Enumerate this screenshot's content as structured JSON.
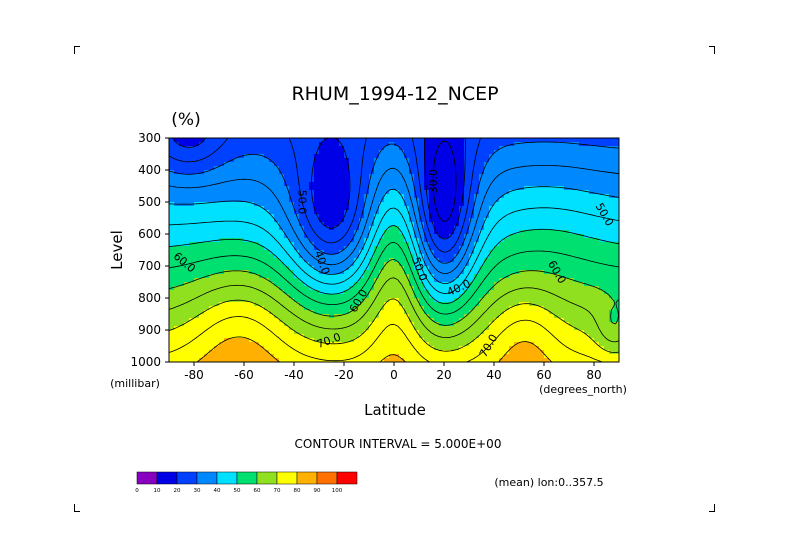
{
  "chart_data": {
    "type": "heatmap",
    "title": "RHUM_1994-12_NCEP",
    "units": "(%)",
    "xlabel": "Latitude",
    "ylabel": "Level",
    "x_units": "(degrees_north)",
    "y_units": "(millibar)",
    "xlim": [
      -90,
      90
    ],
    "ylim": [
      1000,
      300
    ],
    "x_ticks": [
      -80,
      -60,
      -40,
      -20,
      0,
      20,
      40,
      60,
      80
    ],
    "x_tick_labels": [
      "-80",
      "-60",
      "-40",
      "-20",
      "0",
      "20",
      "40",
      "60",
      "80"
    ],
    "y_ticks": [
      300,
      400,
      500,
      600,
      700,
      800,
      900,
      1000
    ],
    "y_tick_labels": [
      "300",
      "400",
      "500",
      "600",
      "700",
      "800",
      "900",
      "1000"
    ],
    "contour_interval_text": "CONTOUR INTERVAL = 5.000E+00",
    "subtitle": "(mean) lon:0..357.5",
    "levels": [
      0,
      10,
      20,
      30,
      40,
      50,
      60,
      70,
      80,
      90,
      100
    ],
    "level_labels": [
      "0",
      "10",
      "20",
      "30",
      "40",
      "50",
      "60",
      "70",
      "80",
      "90",
      "100"
    ],
    "colors": [
      "#8800c0",
      "#0000e6",
      "#0040ff",
      "#0088ff",
      "#00e0ff",
      "#00e070",
      "#90e020",
      "#ffff00",
      "#ffb000",
      "#ff7000",
      "#ff0000"
    ],
    "contour_labels": [
      {
        "text": "50.0",
        "lat": -37,
        "lev": 500,
        "rot": 90
      },
      {
        "text": "30.0",
        "lat": 16,
        "lev": 435,
        "rot": -90
      },
      {
        "text": "40.0",
        "lat": -29,
        "lev": 690,
        "rot": 70
      },
      {
        "text": "50.0",
        "lat": 10,
        "lev": 710,
        "rot": 70
      },
      {
        "text": "60.0",
        "lat": -14,
        "lev": 810,
        "rot": -60
      },
      {
        "text": "70.0",
        "lat": -26,
        "lev": 935,
        "rot": -20
      },
      {
        "text": "40.0",
        "lat": 26,
        "lev": 770,
        "rot": -25
      },
      {
        "text": "70.0",
        "lat": 38,
        "lev": 950,
        "rot": -60
      },
      {
        "text": "60.0",
        "lat": 65,
        "lev": 720,
        "rot": 60
      },
      {
        "text": "50.0",
        "lat": 84,
        "lev": 540,
        "rot": 60
      },
      {
        "text": "60.0",
        "lat": -84,
        "lev": 690,
        "rot": 40
      }
    ]
  }
}
